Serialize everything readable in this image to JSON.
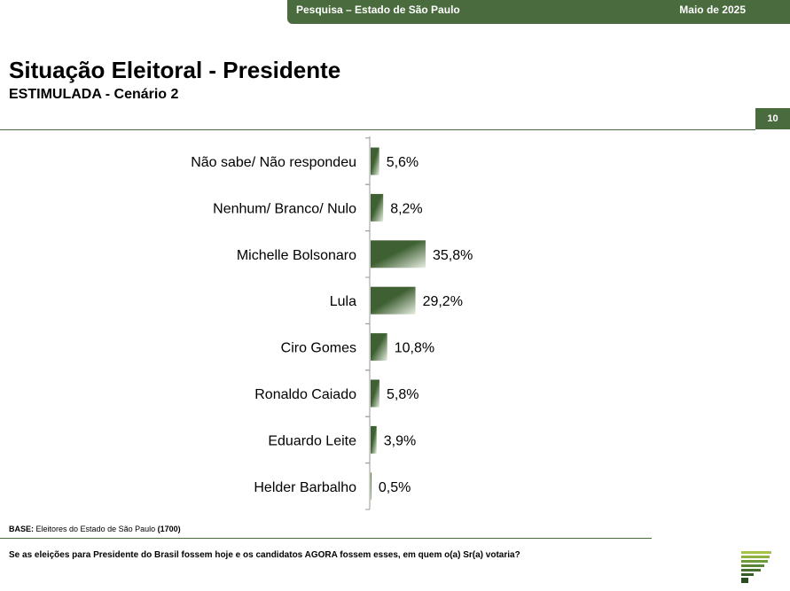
{
  "header": {
    "survey": "Pesquisa – Estado de São Paulo",
    "date": "Maio de 2025"
  },
  "title": "Situação Eleitoral - Presidente",
  "subtitle": "ESTIMULADA - Cenário 2",
  "page_number": "10",
  "footer": {
    "base_label": "BASE:",
    "base_text": "Eleitores do Estado de São Paulo",
    "base_n": "(1700)",
    "question": "Se as eleições para Presidente do Brasil fossem hoje e os candidatos AGORA fossem esses, em quem o(a) Sr(a) votaria?"
  },
  "colors": {
    "accent": "#4a6b3e",
    "bar_dark": "#3f6033",
    "bar_light": "#e8eee3"
  },
  "chart_data": {
    "type": "bar",
    "orientation": "horizontal",
    "categories": [
      "Não sabe/ Não respondeu",
      "Nenhum/ Branco/ Nulo",
      "Michelle Bolsonaro",
      "Lula",
      "Ciro Gomes",
      "Ronaldo Caiado",
      "Eduardo Leite",
      "Helder Barbalho"
    ],
    "values": [
      5.6,
      8.2,
      35.8,
      29.2,
      10.8,
      5.8,
      3.9,
      0.5
    ],
    "value_labels": [
      "5,6%",
      "8,2%",
      "35,8%",
      "29,2%",
      "10,8%",
      "5,8%",
      "3,9%",
      "0,5%"
    ],
    "xlim": [
      0,
      100
    ],
    "grid": false,
    "legend": "none"
  }
}
